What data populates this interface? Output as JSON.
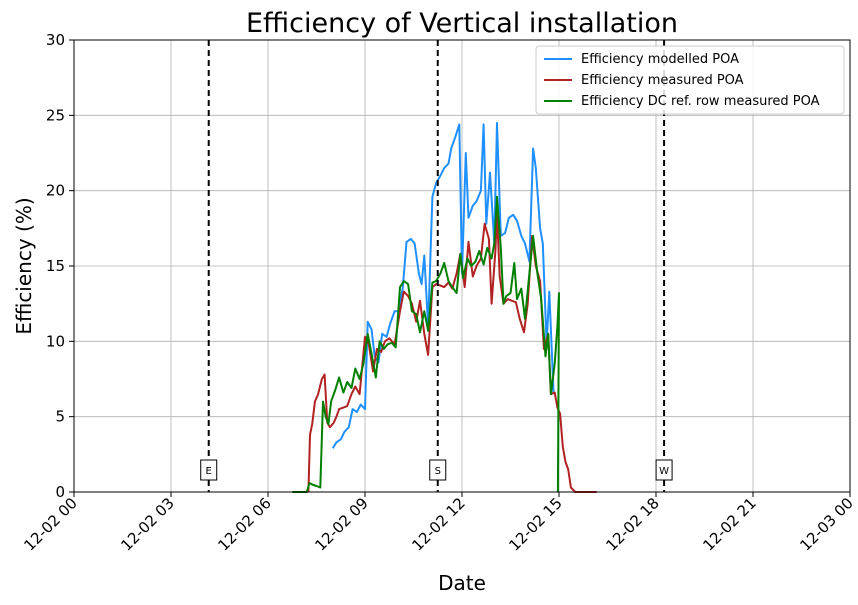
{
  "chart_data": {
    "type": "line",
    "title": "Efficiency of Vertical installation",
    "xlabel": "Date",
    "ylabel": "Efficiency (%)",
    "xlim": [
      "12-02 00:00",
      "12-03 00:00"
    ],
    "ylim": [
      0,
      30
    ],
    "grid": true,
    "legend_position": "top-right",
    "x_ticks": [
      "12-02 00",
      "12-02 03",
      "12-02 06",
      "12-02 09",
      "12-02 12",
      "12-02 15",
      "12-02 18",
      "12-02 21",
      "12-03 00"
    ],
    "y_ticks": [
      "0",
      "5",
      "10",
      "15",
      "20",
      "25",
      "30"
    ],
    "markers": [
      {
        "label": "E",
        "time": "12-02 04:10"
      },
      {
        "label": "S",
        "time": "12-02 11:15"
      },
      {
        "label": "W",
        "time": "12-02 18:15"
      }
    ],
    "series": [
      {
        "name": "Efficiency modelled POA",
        "color": "#1e90ff",
        "points": [
          [
            "08:00",
            2.9
          ],
          [
            "08:07",
            3.3
          ],
          [
            "08:15",
            3.5
          ],
          [
            "08:22",
            4.0
          ],
          [
            "08:30",
            4.3
          ],
          [
            "08:37",
            5.5
          ],
          [
            "08:45",
            5.3
          ],
          [
            "08:52",
            5.8
          ],
          [
            "09:00",
            5.5
          ],
          [
            "09:05",
            11.3
          ],
          [
            "09:12",
            10.8
          ],
          [
            "09:18",
            9.0
          ],
          [
            "09:25",
            8.6
          ],
          [
            "09:32",
            10.5
          ],
          [
            "09:40",
            10.3
          ],
          [
            "09:47",
            11.2
          ],
          [
            "09:55",
            12.0
          ],
          [
            "10:02",
            12.0
          ],
          [
            "10:10",
            13.5
          ],
          [
            "10:17",
            16.6
          ],
          [
            "10:25",
            16.8
          ],
          [
            "10:32",
            16.5
          ],
          [
            "10:40",
            14.5
          ],
          [
            "10:45",
            13.8
          ],
          [
            "10:50",
            15.7
          ],
          [
            "10:57",
            11.0
          ],
          [
            "11:05",
            19.6
          ],
          [
            "11:12",
            20.5
          ],
          [
            "11:20",
            21.0
          ],
          [
            "11:27",
            21.5
          ],
          [
            "11:35",
            21.8
          ],
          [
            "11:40",
            22.8
          ],
          [
            "11:47",
            23.5
          ],
          [
            "11:55",
            24.4
          ],
          [
            "12:00",
            14.5
          ],
          [
            "12:07",
            22.5
          ],
          [
            "12:12",
            18.2
          ],
          [
            "12:20",
            19.0
          ],
          [
            "12:27",
            19.3
          ],
          [
            "12:35",
            20.0
          ],
          [
            "12:40",
            24.4
          ],
          [
            "12:45",
            17.8
          ],
          [
            "12:52",
            21.2
          ],
          [
            "13:00",
            16.5
          ],
          [
            "13:05",
            24.5
          ],
          [
            "13:12",
            17.0
          ],
          [
            "13:20",
            17.2
          ],
          [
            "13:27",
            18.2
          ],
          [
            "13:35",
            18.4
          ],
          [
            "13:42",
            18.0
          ],
          [
            "13:50",
            17.0
          ],
          [
            "13:57",
            16.5
          ],
          [
            "14:05",
            15.3
          ],
          [
            "14:12",
            22.8
          ],
          [
            "14:17",
            21.5
          ],
          [
            "14:25",
            17.5
          ],
          [
            "14:30",
            16.5
          ],
          [
            "14:37",
            9.8
          ],
          [
            "14:42",
            13.3
          ],
          [
            "14:50",
            6.5
          ]
        ]
      },
      {
        "name": "Efficiency measured POA",
        "color": "#b22222",
        "points": [
          [
            "07:15",
            0.0
          ],
          [
            "07:18",
            3.8
          ],
          [
            "07:22",
            4.5
          ],
          [
            "07:27",
            6.0
          ],
          [
            "07:33",
            6.5
          ],
          [
            "07:40",
            7.5
          ],
          [
            "07:45",
            7.8
          ],
          [
            "07:50",
            4.6
          ],
          [
            "07:55",
            4.3
          ],
          [
            "08:02",
            4.6
          ],
          [
            "08:07",
            5.0
          ],
          [
            "08:12",
            5.5
          ],
          [
            "08:20",
            5.6
          ],
          [
            "08:27",
            5.7
          ],
          [
            "08:35",
            6.5
          ],
          [
            "08:42",
            7.0
          ],
          [
            "08:50",
            6.5
          ],
          [
            "09:00",
            10.3
          ],
          [
            "09:07",
            9.8
          ],
          [
            "09:15",
            8.0
          ],
          [
            "09:22",
            9.5
          ],
          [
            "09:30",
            9.3
          ],
          [
            "09:37",
            10.0
          ],
          [
            "09:45",
            10.2
          ],
          [
            "09:55",
            9.8
          ],
          [
            "10:05",
            12.0
          ],
          [
            "10:12",
            13.3
          ],
          [
            "10:20",
            13.0
          ],
          [
            "10:27",
            12.5
          ],
          [
            "10:35",
            11.3
          ],
          [
            "10:42",
            12.7
          ],
          [
            "10:50",
            10.5
          ],
          [
            "10:57",
            9.1
          ],
          [
            "11:05",
            13.6
          ],
          [
            "11:12",
            13.8
          ],
          [
            "11:20",
            13.7
          ],
          [
            "11:27",
            13.6
          ],
          [
            "11:35",
            13.9
          ],
          [
            "11:42",
            13.5
          ],
          [
            "11:50",
            14.5
          ],
          [
            "11:57",
            15.8
          ],
          [
            "12:05",
            13.6
          ],
          [
            "12:12",
            16.6
          ],
          [
            "12:20",
            14.3
          ],
          [
            "12:27",
            15.0
          ],
          [
            "12:35",
            15.5
          ],
          [
            "12:42",
            17.8
          ],
          [
            "12:50",
            16.8
          ],
          [
            "12:55",
            12.5
          ],
          [
            "13:02",
            16.0
          ],
          [
            "13:05",
            18.5
          ],
          [
            "13:10",
            14.3
          ],
          [
            "13:17",
            12.5
          ],
          [
            "13:25",
            12.8
          ],
          [
            "13:32",
            12.7
          ],
          [
            "13:40",
            12.6
          ],
          [
            "13:47",
            11.5
          ],
          [
            "13:55",
            10.6
          ],
          [
            "14:02",
            12.5
          ],
          [
            "14:10",
            17.0
          ],
          [
            "14:17",
            15.0
          ],
          [
            "14:25",
            14.0
          ],
          [
            "14:32",
            9.5
          ],
          [
            "14:40",
            10.5
          ],
          [
            "14:45",
            6.5
          ],
          [
            "14:52",
            6.6
          ],
          [
            "14:57",
            5.6
          ],
          [
            "15:02",
            5.2
          ],
          [
            "15:07",
            3.0
          ],
          [
            "15:12",
            2.0
          ],
          [
            "15:17",
            1.5
          ],
          [
            "15:22",
            0.3
          ],
          [
            "15:30",
            0.0
          ],
          [
            "16:10",
            0.0
          ]
        ]
      },
      {
        "name": "Efficiency DC ref. row measured POA",
        "color": "#008000",
        "points": [
          [
            "06:45",
            0.0
          ],
          [
            "07:12",
            0.0
          ],
          [
            "07:17",
            0.6
          ],
          [
            "07:22",
            0.5
          ],
          [
            "07:30",
            0.4
          ],
          [
            "07:37",
            0.3
          ],
          [
            "07:42",
            6.0
          ],
          [
            "07:47",
            5.0
          ],
          [
            "07:52",
            4.5
          ],
          [
            "07:57",
            6.0
          ],
          [
            "08:05",
            6.8
          ],
          [
            "08:12",
            7.6
          ],
          [
            "08:20",
            6.6
          ],
          [
            "08:27",
            7.3
          ],
          [
            "08:35",
            6.9
          ],
          [
            "08:42",
            8.2
          ],
          [
            "08:50",
            7.5
          ],
          [
            "08:57",
            8.5
          ],
          [
            "09:05",
            10.5
          ],
          [
            "09:12",
            9.2
          ],
          [
            "09:20",
            7.6
          ],
          [
            "09:27",
            10.0
          ],
          [
            "09:35",
            9.5
          ],
          [
            "09:42",
            9.8
          ],
          [
            "09:50",
            9.9
          ],
          [
            "09:57",
            9.6
          ],
          [
            "10:05",
            13.6
          ],
          [
            "10:12",
            14.0
          ],
          [
            "10:20",
            13.8
          ],
          [
            "10:27",
            12.0
          ],
          [
            "10:35",
            11.8
          ],
          [
            "10:42",
            10.6
          ],
          [
            "10:50",
            12.0
          ],
          [
            "10:57",
            10.7
          ],
          [
            "11:05",
            13.9
          ],
          [
            "11:12",
            14.0
          ],
          [
            "11:20",
            14.5
          ],
          [
            "11:27",
            15.2
          ],
          [
            "11:35",
            14.0
          ],
          [
            "11:42",
            13.6
          ],
          [
            "11:50",
            13.2
          ],
          [
            "11:57",
            15.8
          ],
          [
            "12:02",
            14.2
          ],
          [
            "12:10",
            15.5
          ],
          [
            "12:17",
            15.0
          ],
          [
            "12:25",
            15.3
          ],
          [
            "12:32",
            16.0
          ],
          [
            "12:40",
            15.1
          ],
          [
            "12:47",
            16.2
          ],
          [
            "12:55",
            15.5
          ],
          [
            "13:00",
            16.5
          ],
          [
            "13:05",
            19.6
          ],
          [
            "13:12",
            16.2
          ],
          [
            "13:17",
            12.5
          ],
          [
            "13:22",
            13.0
          ],
          [
            "13:30",
            13.2
          ],
          [
            "13:37",
            15.2
          ],
          [
            "13:42",
            12.8
          ],
          [
            "13:50",
            13.5
          ],
          [
            "13:57",
            11.5
          ],
          [
            "14:05",
            14.5
          ],
          [
            "14:12",
            17.0
          ],
          [
            "14:20",
            14.5
          ],
          [
            "14:27",
            12.8
          ],
          [
            "14:35",
            9.0
          ],
          [
            "14:40",
            10.5
          ],
          [
            "14:45",
            6.5
          ],
          [
            "14:52",
            8.5
          ],
          [
            "14:57",
            11.0
          ],
          [
            "15:00",
            13.2
          ],
          [
            "14:58",
            0.0
          ]
        ]
      }
    ]
  }
}
